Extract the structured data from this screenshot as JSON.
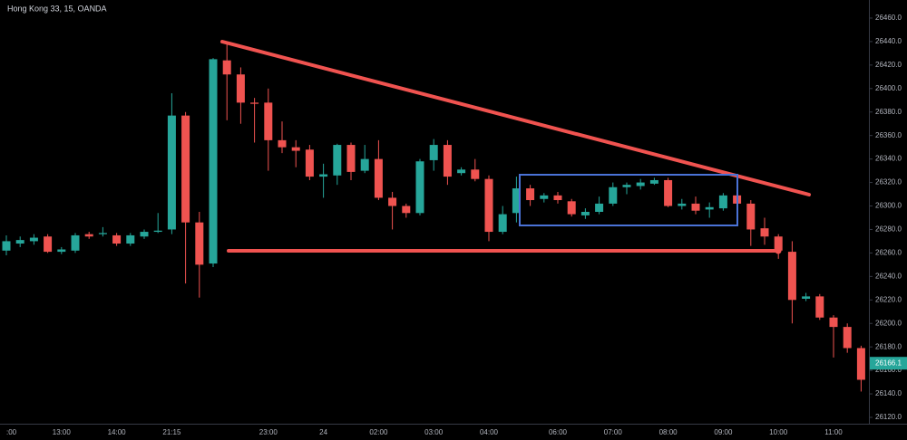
{
  "chart_data": {
    "type": "candlestick",
    "title": "Hong Kong 33, 15, OANDA",
    "categories": [
      ":00",
      null,
      null,
      null,
      "13:00",
      null,
      null,
      null,
      "14:00",
      null,
      null,
      null,
      "21:15",
      null,
      null,
      null,
      null,
      null,
      null,
      "23:00",
      null,
      null,
      null,
      "24",
      null,
      null,
      null,
      "02:00",
      null,
      null,
      null,
      "03:00",
      null,
      null,
      null,
      "04:00",
      null,
      null,
      null,
      null,
      "06:00",
      null,
      null,
      null,
      "07:00",
      null,
      null,
      null,
      "08:00",
      null,
      null,
      null,
      "09:00",
      null,
      null,
      null,
      "10:00",
      null,
      null,
      null,
      "11:00",
      null,
      null
    ],
    "open": [
      26262,
      26268,
      26270,
      26274,
      26261,
      26262,
      26276,
      26276,
      26275,
      26268,
      26274,
      26278,
      26280,
      26377,
      26286,
      26251,
      26424,
      26412,
      26388,
      26388,
      26356,
      26350,
      26348,
      26325,
      26326,
      26352,
      26330,
      26340,
      26307,
      26300,
      26294,
      26339,
      26352,
      26328,
      26331,
      26323,
      26278,
      26294,
      26315,
      26306,
      26309,
      26304,
      26292,
      26295,
      26302,
      26316,
      26317,
      26319,
      26322,
      26300,
      26302,
      26297,
      26298,
      26309,
      26302,
      26281,
      26274,
      26261,
      26221,
      26223,
      26205,
      26197,
      26179
    ],
    "high": [
      26275,
      26274,
      26276,
      26276,
      26265,
      26277,
      26278,
      26282,
      26277,
      26277,
      26280,
      26294,
      26396,
      26380,
      26295,
      26426,
      26438,
      26418,
      26392,
      26400,
      26372,
      26356,
      26352,
      26336,
      26353,
      26354,
      26352,
      26356,
      26312,
      26302,
      26340,
      26357,
      26356,
      26333,
      26340,
      26326,
      26300,
      26325,
      26318,
      26311,
      26312,
      26306,
      26298,
      26308,
      26320,
      26320,
      26323,
      26324,
      26324,
      26306,
      26308,
      26303,
      26311,
      26314,
      26305,
      26290,
      26276,
      26270,
      26226,
      26225,
      26207,
      26200,
      26181
    ],
    "low": [
      26258,
      26265,
      26267,
      26260,
      26259,
      26260,
      26272,
      26274,
      26266,
      26266,
      26272,
      26277,
      26276,
      26234,
      26222,
      26248,
      26373,
      26370,
      26354,
      26330,
      26345,
      26333,
      26322,
      26307,
      26318,
      26322,
      26328,
      26305,
      26280,
      26290,
      26292,
      26330,
      26318,
      26326,
      26321,
      26270,
      26276,
      26286,
      26300,
      26303,
      26302,
      26291,
      26289,
      26293,
      26300,
      26310,
      26314,
      26318,
      26299,
      26297,
      26293,
      26290,
      26296,
      26298,
      26266,
      26267,
      26255,
      26200,
      26219,
      26203,
      26171,
      26175,
      26142
    ],
    "close": [
      26270,
      26271,
      26273,
      26261,
      26263,
      26275,
      26274,
      26277,
      26268,
      26275,
      26278,
      26279,
      26377,
      26286,
      26250,
      26425,
      26412,
      26388,
      26387,
      26356,
      26350,
      26347,
      26325,
      26327,
      26352,
      26329,
      26340,
      26307,
      26300,
      26294,
      26338,
      26352,
      26325,
      26331,
      26323,
      26278,
      26293,
      26315,
      26305,
      26309,
      26305,
      26293,
      26295,
      26302,
      26316,
      26318,
      26320,
      26322,
      26300,
      26302,
      26296,
      26299,
      26309,
      26302,
      26280,
      26274,
      26262,
      26220,
      26223,
      26205,
      26197,
      26179,
      26152
    ],
    "up_color": "#26a69a",
    "down_color": "#ef5350",
    "ylim": [
      26114.6,
      26475.4
    ],
    "yticks": [
      {
        "value": 26120,
        "label": "26120.0"
      },
      {
        "value": 26140,
        "label": "26140.0"
      },
      {
        "value": 26160,
        "label": "26160.0"
      },
      {
        "value": 26180,
        "label": "26180.0"
      },
      {
        "value": 26200,
        "label": "26200.0"
      },
      {
        "value": 26220,
        "label": "26220.0"
      },
      {
        "value": 26240,
        "label": "26240.0"
      },
      {
        "value": 26260,
        "label": "26260.0"
      },
      {
        "value": 26280,
        "label": "26280.0"
      },
      {
        "value": 26300,
        "label": "26300.0"
      },
      {
        "value": 26320,
        "label": "26320.0"
      },
      {
        "value": 26340,
        "label": "26340.0"
      },
      {
        "value": 26360,
        "label": "26360.0"
      },
      {
        "value": 26380,
        "label": "26380.0"
      },
      {
        "value": 26400,
        "label": "26400.0"
      },
      {
        "value": 26420,
        "label": "26420.0"
      },
      {
        "value": 26440,
        "label": "26440.0"
      },
      {
        "value": 26460,
        "label": "26460.0"
      }
    ],
    "last_price": 26166.1,
    "grid": false
  }
}
